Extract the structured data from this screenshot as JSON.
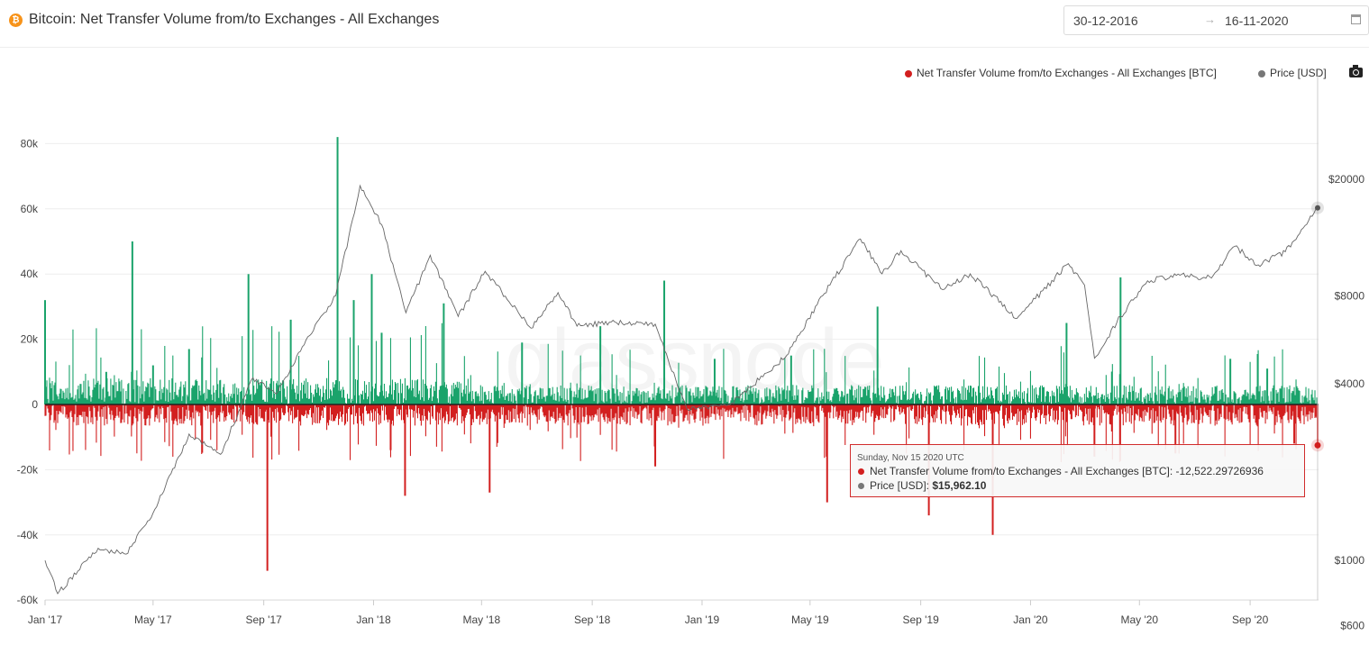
{
  "header": {
    "coin_icon": "bitcoin-icon",
    "title": "Bitcoin: Net Transfer Volume from/to Exchanges - All Exchanges",
    "date_start": "30-12-2016",
    "date_arrow": "→",
    "date_end": "16-11-2020"
  },
  "legend": {
    "net": "Net Transfer Volume from/to Exchanges - All Exchanges [BTC]",
    "price": "Price [USD]"
  },
  "watermark": "glassnode",
  "tooltip": {
    "date": "Sunday, Nov 15 2020 UTC",
    "net_label": "Net Transfer Volume from/to Exchanges - All Exchanges [BTC]:",
    "net_value": "-12,522.29726936",
    "price_label": "Price [USD]:",
    "price_value": "$15,962.10"
  },
  "colors": {
    "inflow": "#1aa36b",
    "outflow": "#d21f1f",
    "price": "#666666",
    "tooltip_border": "#d12c2c"
  },
  "chart_data": {
    "type": "bar",
    "x_ticks": [
      "Jan '17",
      "May '17",
      "Sep '17",
      "Jan '18",
      "May '18",
      "Sep '18",
      "Jan '19",
      "May '19",
      "Sep '19",
      "Jan '20",
      "May '20",
      "Sep '20"
    ],
    "y_left_ticks": [
      "80k",
      "60k",
      "40k",
      "20k",
      "0",
      "-20k",
      "-40k",
      "-60k"
    ],
    "y_left_lim": [
      -60000,
      82000
    ],
    "y_right_ticks": [
      "$20000",
      "$8000",
      "$4000",
      "$1000",
      "$600"
    ],
    "y_right_scale": "log",
    "series": [
      {
        "name": "Net Transfer Volume from/to Exchanges - All Exchanges [BTC]",
        "kind": "bar",
        "x": [
          "2017-01-01",
          "2017-03-10",
          "2017-04-08",
          "2017-05-01",
          "2017-06-10",
          "2017-08-15",
          "2017-09-05",
          "2017-10-01",
          "2017-11-22",
          "2017-12-10",
          "2017-12-30",
          "2018-01-10",
          "2018-01-20",
          "2018-02-05",
          "2018-03-20",
          "2018-05-10",
          "2018-06-15",
          "2018-09-10",
          "2018-11-10",
          "2018-11-20",
          "2019-01-15",
          "2019-04-10",
          "2019-05-20",
          "2019-07-15",
          "2019-09-10",
          "2019-11-20",
          "2020-02-10",
          "2020-03-12",
          "2020-04-10",
          "2020-06-10",
          "2020-08-10",
          "2020-09-20",
          "2020-10-20",
          "2020-11-15"
        ],
        "values": [
          32000,
          10000,
          50000,
          12000,
          17000,
          40000,
          -51000,
          26000,
          82000,
          32000,
          40000,
          22000,
          -14000,
          -28000,
          31000,
          -27000,
          19000,
          24000,
          -19000,
          38000,
          14000,
          15000,
          -30000,
          30000,
          -34000,
          -40000,
          25000,
          -16000,
          39000,
          -15000,
          14000,
          11000,
          -12000,
          -12522.29726936
        ]
      },
      {
        "name": "Price [USD]",
        "kind": "line",
        "x": [
          "2017-01-01",
          "2017-01-15",
          "2017-03-01",
          "2017-04-01",
          "2017-05-01",
          "2017-06-10",
          "2017-07-15",
          "2017-08-20",
          "2017-09-15",
          "2017-10-20",
          "2017-11-20",
          "2017-12-17",
          "2018-01-10",
          "2018-02-06",
          "2018-03-05",
          "2018-04-05",
          "2018-05-05",
          "2018-06-25",
          "2018-07-25",
          "2018-08-15",
          "2018-09-20",
          "2018-11-10",
          "2018-12-15",
          "2019-02-01",
          "2019-04-05",
          "2019-05-15",
          "2019-06-26",
          "2019-07-20",
          "2019-08-10",
          "2019-09-25",
          "2019-10-26",
          "2019-12-17",
          "2020-02-12",
          "2020-03-01",
          "2020-03-12",
          "2020-04-10",
          "2020-05-10",
          "2020-06-15",
          "2020-07-20",
          "2020-08-15",
          "2020-09-10",
          "2020-10-10",
          "2020-11-15"
        ],
        "values": [
          1000,
          770,
          1100,
          1050,
          1450,
          2700,
          2300,
          4200,
          3700,
          5800,
          8000,
          19000,
          14000,
          7000,
          11000,
          6800,
          9700,
          6200,
          8200,
          6300,
          6500,
          6400,
          3300,
          3400,
          5000,
          8000,
          12500,
          9500,
          11400,
          8400,
          9500,
          6700,
          10300,
          8700,
          4900,
          6800,
          9000,
          9400,
          9200,
          11800,
          10200,
          11300,
          15962.1
        ]
      }
    ]
  }
}
